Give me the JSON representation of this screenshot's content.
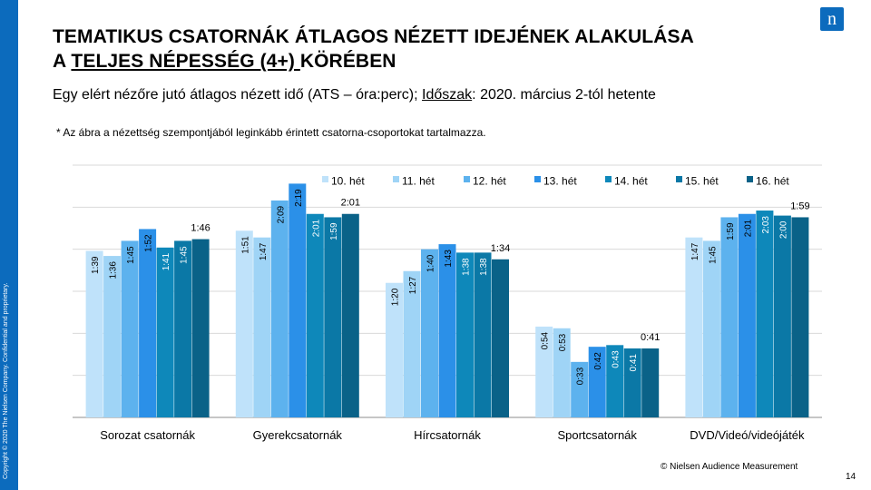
{
  "title_line1": "TEMATIKUS CSATORNÁK ÁTLAGOS NÉZETT IDEJÉNEK ALAKULÁSA",
  "title_line2_pre": "A ",
  "title_line2_underlined": "TELJES NÉPESSÉG (4+) ",
  "title_line2_post": "KÖRÉBEN",
  "subtitle_pre": "Egy elért nézőre jutó átlagos nézett idő (ATS – óra:perc); ",
  "subtitle_underlined": "Időszak",
  "subtitle_post": ": 2020. március 2-tól hetente",
  "note": "* Az ábra a nézettség szempontjából leginkább érintett  csatorna-csoportokat tartalmazza.",
  "logo_text": "n",
  "side_text": "Copyright © 2020 The Nielsen Company. Confidential and proprietary.",
  "copyright": "© Nielsen Audience Measurement",
  "page_number": "14",
  "colors": {
    "brand": "#0c6bbd",
    "series": [
      "#bfe2fa",
      "#9fd4f6",
      "#5db2ee",
      "#2b90e8",
      "#0e88ba",
      "#0b78a6",
      "#0a6288"
    ]
  },
  "chart_data": {
    "type": "bar",
    "categories": [
      "Sorozat csatornák",
      "Gyerekcsatornák",
      "Hírcsatornák",
      "Sportcsatornák",
      "DVD/Videó/videójáték"
    ],
    "ylim": [
      0,
      150
    ],
    "y_unit": "minutes",
    "grid": true,
    "legend_position": "top",
    "series": [
      {
        "name": "10. hét",
        "values": [
          99,
          111,
          80,
          54,
          107
        ],
        "labels": [
          "1:39",
          "1:51",
          "1:20",
          "0:54",
          "1:47"
        ]
      },
      {
        "name": "11. hét",
        "values": [
          96,
          107,
          87,
          53,
          105
        ],
        "labels": [
          "1:36",
          "1:47",
          "1:27",
          "0:53",
          "1:45"
        ]
      },
      {
        "name": "12. hét",
        "values": [
          105,
          129,
          100,
          33,
          119
        ],
        "labels": [
          "1:45",
          "2:09",
          "1:40",
          "0:33",
          "1:59"
        ]
      },
      {
        "name": "13. hét",
        "values": [
          112,
          139,
          103,
          42,
          121
        ],
        "labels": [
          "1:52",
          "2:19",
          "1:43",
          "0:42",
          "2:01"
        ]
      },
      {
        "name": "14. hét",
        "values": [
          101,
          121,
          98,
          43,
          123
        ],
        "labels": [
          "1:41",
          "2:01",
          "1:38",
          "0:43",
          "2:03"
        ]
      },
      {
        "name": "15. hét",
        "values": [
          105,
          119,
          98,
          41,
          120
        ],
        "labels": [
          "1:45",
          "1:59",
          "1:38",
          "0:41",
          "2:00"
        ]
      },
      {
        "name": "16. hét",
        "values": [
          106,
          121,
          94,
          41,
          119
        ],
        "labels": [
          "1:46",
          "2:01",
          "1:34",
          "0:41",
          "1:59"
        ]
      }
    ]
  }
}
